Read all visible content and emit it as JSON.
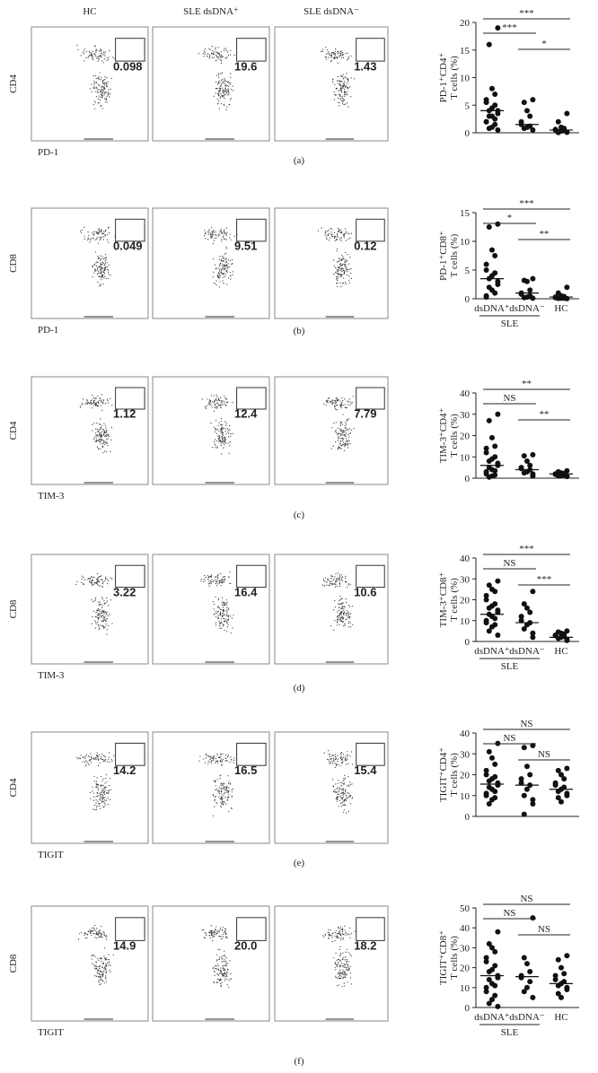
{
  "column_headers": [
    "HC",
    "SLE dsDNA⁺",
    "SLE dsDNA⁻"
  ],
  "panels": [
    {
      "label": "(a)",
      "flow": {
        "y_label": "CD4",
        "x_label": "PD-1",
        "gates": [
          "0.098",
          "19.6",
          "1.43"
        ]
      },
      "chart_data": {
        "type": "strip",
        "y_label": [
          "PD-1⁺CD4⁺",
          "T cells (%)"
        ],
        "ylim": [
          0,
          20
        ],
        "yticks": [
          0,
          5,
          10,
          15,
          20
        ],
        "groups": [
          {
            "values": [
              19,
              16,
              8,
              7,
              6,
              5.5,
              5,
              4.5,
              4,
              4,
              3.5,
              3,
              3,
              2.5,
              2,
              2,
              1.5,
              1,
              0.8,
              0.5
            ],
            "median": 4
          },
          {
            "values": [
              6,
              5.5,
              4,
              3,
              2,
              1.5,
              1.2,
              1,
              0.8,
              0.5
            ],
            "median": 1.5
          },
          {
            "values": [
              3.5,
              2,
              1,
              0.8,
              0.6,
              0.5,
              0.4,
              0.3,
              0.2,
              0.1,
              0.1,
              0.05
            ],
            "median": 0.5
          }
        ],
        "comparisons": [
          {
            "from": 0,
            "to": 2,
            "label": "***"
          },
          {
            "from": 0,
            "to": 1,
            "label": "***"
          },
          {
            "from": 1,
            "to": 2,
            "label": "*"
          }
        ]
      }
    },
    {
      "label": "(b)",
      "flow": {
        "y_label": "CD8",
        "x_label": "PD-1",
        "gates": [
          "0.049",
          "9.51",
          "0.12"
        ]
      },
      "chart_data": {
        "type": "strip",
        "y_label": [
          "PD-1⁺CD8⁺",
          "T cells (%)"
        ],
        "ylim": [
          0,
          15
        ],
        "yticks": [
          0,
          5,
          10,
          15
        ],
        "categories": [
          "dsDNA⁺",
          "dsDNA⁻",
          "HC"
        ],
        "group_label": "SLE",
        "groups": [
          {
            "values": [
              13,
              12.5,
              8.5,
              7.5,
              6,
              5,
              4.5,
              4,
              3.5,
              3,
              2.5,
              2,
              1.5,
              1,
              0.5,
              0.3
            ],
            "median": 3.5
          },
          {
            "values": [
              3.5,
              3.2,
              3,
              1.5,
              1,
              0.8,
              0.5,
              0.3,
              0.2,
              0.1
            ],
            "median": 1
          },
          {
            "values": [
              2,
              1,
              0.5,
              0.4,
              0.3,
              0.2,
              0.1,
              0.1,
              0.05,
              0.02
            ],
            "median": 0.3
          }
        ],
        "comparisons": [
          {
            "from": 0,
            "to": 2,
            "label": "***"
          },
          {
            "from": 0,
            "to": 1,
            "label": "*"
          },
          {
            "from": 1,
            "to": 2,
            "label": "**"
          }
        ]
      }
    },
    {
      "label": "(c)",
      "flow": {
        "y_label": "CD4",
        "x_label": "TIM-3",
        "gates": [
          "1.12",
          "12.4",
          "7.79"
        ]
      },
      "chart_data": {
        "type": "strip",
        "y_label": [
          "TIM-3⁺CD4⁺",
          "T cells (%)"
        ],
        "ylim": [
          0,
          40
        ],
        "yticks": [
          0,
          10,
          20,
          30,
          40
        ],
        "groups": [
          {
            "values": [
              30,
              27,
              19,
              15,
              14,
              12,
              10,
              9,
              8,
              7,
              6,
              5,
              4,
              3.5,
              3,
              2,
              1.5,
              1,
              0.5
            ],
            "median": 6
          },
          {
            "values": [
              11,
              10.5,
              8,
              6,
              5,
              4.5,
              4,
              3,
              2.5,
              2,
              1
            ],
            "median": 4
          },
          {
            "values": [
              3.5,
              3,
              2.5,
              2.2,
              2,
              1.8,
              1.5,
              1.3,
              1.2,
              1,
              0.8
            ],
            "median": 2
          }
        ],
        "comparisons": [
          {
            "from": 0,
            "to": 2,
            "label": "**"
          },
          {
            "from": 0,
            "to": 1,
            "label": "NS"
          },
          {
            "from": 1,
            "to": 2,
            "label": "**"
          }
        ]
      }
    },
    {
      "label": "(d)",
      "flow": {
        "y_label": "CD8",
        "x_label": "TIM-3",
        "gates": [
          "3.22",
          "16.4",
          "10.6"
        ]
      },
      "chart_data": {
        "type": "strip",
        "y_label": [
          "TIM-3⁺CD8⁺",
          "T cells (%)"
        ],
        "ylim": [
          0,
          40
        ],
        "yticks": [
          0,
          10,
          20,
          30,
          40
        ],
        "categories": [
          "dsDNA⁺",
          "dsDNA⁻",
          "HC"
        ],
        "group_label": "SLE",
        "groups": [
          {
            "values": [
              29,
              27,
              25,
              24,
              22,
              20,
              18,
              17,
              16,
              15,
              14,
              13,
              12,
              11,
              10,
              9,
              8,
              7,
              5,
              3
            ],
            "median": 13
          },
          {
            "values": [
              24,
              18,
              16,
              14,
              12,
              10,
              9,
              8,
              6,
              4,
              2
            ],
            "median": 9
          },
          {
            "values": [
              5,
              4.5,
              4,
              3.5,
              3,
              2.8,
              2.5,
              2,
              1.5,
              1,
              0.5
            ],
            "median": 2
          }
        ],
        "comparisons": [
          {
            "from": 0,
            "to": 2,
            "label": "***"
          },
          {
            "from": 0,
            "to": 1,
            "label": "NS"
          },
          {
            "from": 1,
            "to": 2,
            "label": "***"
          }
        ]
      }
    },
    {
      "label": "(e)",
      "flow": {
        "y_label": "CD4",
        "x_label": "TIGIT",
        "gates": [
          "14.2",
          "16.5",
          "15.4"
        ]
      },
      "chart_data": {
        "type": "strip",
        "y_label": [
          "TIGIT⁺CD4⁺",
          "T cells (%)"
        ],
        "ylim": [
          0,
          40
        ],
        "yticks": [
          0,
          10,
          20,
          30,
          40
        ],
        "groups": [
          {
            "values": [
              35,
              31,
              28,
              25,
              22,
              20,
              19,
              18,
              17,
              16,
              15,
              14,
              13,
              12,
              11,
              10,
              9,
              8,
              6
            ],
            "median": 15.5
          },
          {
            "values": [
              34,
              33,
              24,
              20,
              18,
              16,
              15,
              13,
              10,
              8,
              6,
              1
            ],
            "median": 15
          },
          {
            "values": [
              23,
              22,
              20,
              18,
              16,
              15,
              14,
              13,
              12,
              11,
              10,
              9,
              7
            ],
            "median": 13
          }
        ],
        "comparisons": [
          {
            "from": 0,
            "to": 2,
            "label": "NS"
          },
          {
            "from": 0,
            "to": 1,
            "label": "NS"
          },
          {
            "from": 1,
            "to": 2,
            "label": "NS"
          }
        ]
      }
    },
    {
      "label": "(f)",
      "flow": {
        "y_label": "CD8",
        "x_label": "TIGIT",
        "gates": [
          "14.9",
          "20.0",
          "18.2"
        ]
      },
      "chart_data": {
        "type": "strip",
        "y_label": [
          "TIGIT⁺CD8⁺",
          "T cells (%)"
        ],
        "ylim": [
          0,
          50
        ],
        "yticks": [
          0,
          10,
          20,
          30,
          40,
          50
        ],
        "categories": [
          "dsDNA⁺",
          "dsDNA⁻",
          "HC"
        ],
        "group_label": "SLE",
        "groups": [
          {
            "values": [
              38,
              32,
              30,
              28,
              25,
              23,
              21,
              19,
              18,
              16,
              15,
              14,
              12,
              11,
              10,
              8,
              6,
              4,
              2,
              0.5
            ],
            "median": 16
          },
          {
            "values": [
              45,
              25,
              22,
              18,
              16,
              15,
              13,
              10,
              8,
              5
            ],
            "median": 15.5
          },
          {
            "values": [
              26,
              24,
              20,
              17,
              16,
              14,
              13,
              12,
              11,
              10,
              9,
              7,
              5
            ],
            "median": 12
          }
        ],
        "comparisons": [
          {
            "from": 0,
            "to": 2,
            "label": "NS"
          },
          {
            "from": 0,
            "to": 1,
            "label": "NS"
          },
          {
            "from": 1,
            "to": 2,
            "label": "NS"
          }
        ]
      }
    }
  ]
}
